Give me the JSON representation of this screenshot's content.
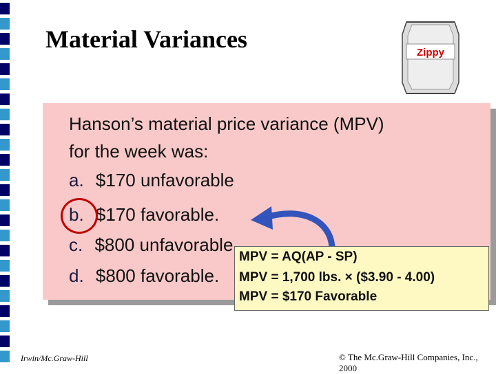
{
  "slide": {
    "title": "Material Variances",
    "question_line1": "Hanson’s material price variance (MPV)",
    "question_line2": "for the week was:",
    "options": [
      {
        "letter": "a.",
        "text": "$170 unfavorable",
        "trail": "."
      },
      {
        "letter": "b.",
        "text": "$170 favorable."
      },
      {
        "letter": "c.",
        "text": "$800 unfavorable."
      },
      {
        "letter": "d.",
        "text": "$800 favorable."
      }
    ],
    "answer": {
      "line1": "MPV = AQ(AP - SP)",
      "line2": "MPV = 1,700 lbs. × ($3.90 - 4.00)",
      "line3": "MPV = $170 Favorable"
    },
    "selected_option": "b"
  },
  "product": {
    "label": "Zippy",
    "label_color": "#cc0000"
  },
  "colors": {
    "bar_dark": "#000066",
    "bar_light": "#3399cc",
    "box_fill": "#f9c9c9",
    "answer_fill": "#fef9c3",
    "arrow": "#3355bb",
    "circle": "#c00000"
  },
  "footer": {
    "left": "Irwin/Mc.Graw-Hill",
    "right": "© The Mc.Graw-Hill Companies, Inc., 2000"
  }
}
